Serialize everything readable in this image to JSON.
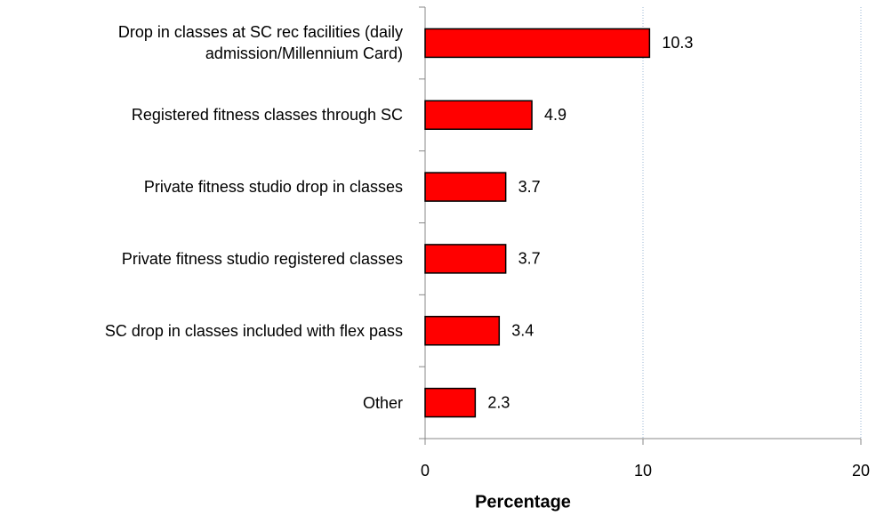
{
  "chart_data": {
    "type": "barh",
    "xlabel": "Percentage",
    "categories": [
      "Drop in classes at SC rec facilities (daily admission/Millennium Card)",
      "Registered fitness classes through SC",
      "Private fitness studio drop in classes",
      "Private fitness studio registered classes",
      "SC drop in classes included with flex pass",
      "Other"
    ],
    "values": [
      10.3,
      4.9,
      3.7,
      3.7,
      3.4,
      2.3
    ],
    "color": "#ff0000",
    "xlim": [
      0,
      20
    ],
    "xticks": [
      0,
      10,
      20
    ],
    "grid": true
  }
}
